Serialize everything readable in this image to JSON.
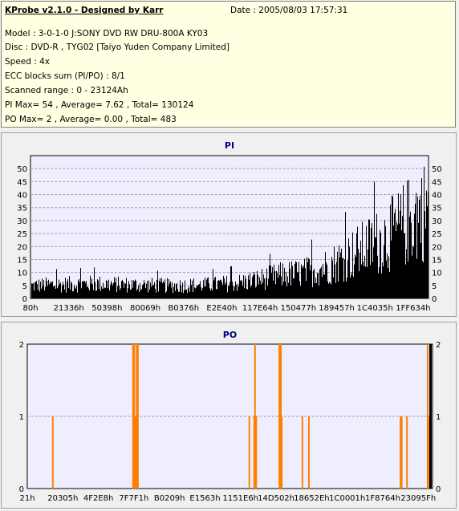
{
  "info": {
    "title": "KProbe v2.1.0 - Designed by Karr",
    "date": "Date : 2005/08/03 17:57:31",
    "lines": [
      "Model : 3-0-1-0 J:SONY     DVD RW DRU-800A  KY03",
      "Disc : DVD-R , TYG02 [Taiyo Yuden Company Limited]",
      "Speed : 4x",
      "ECC blocks sum (PI/PO) : 8/1",
      "Scanned range : 0 - 23124Ah",
      "PI Max= 54 , Average= 7.62 , Total= 130124",
      "PO Max= 2 , Average= 0.00 , Total= 483"
    ]
  },
  "colors": {
    "pi_bar": "#000000",
    "po_bar": "#ff8000",
    "plot_bg": "#eeeeff",
    "grid": "#a0a0a0",
    "title": "#000080",
    "info_bg": "#ffffe1"
  },
  "chart_data": [
    {
      "type": "bar",
      "title": "PI",
      "ylim": [
        0,
        55
      ],
      "yticks": [
        0,
        5,
        10,
        15,
        20,
        25,
        30,
        35,
        40,
        45,
        50
      ],
      "grid": "dashed horizontal",
      "xticks": [
        "80h",
        "21336h",
        "50398h",
        "80069h",
        "B0376h",
        "E2E40h",
        "117E64h",
        "150477h",
        "189457h",
        "1C4035h",
        "1FF634h"
      ],
      "trend_envelope": [
        {
          "x": 0.0,
          "y": 6.5
        },
        {
          "x": 0.05,
          "y": 7
        },
        {
          "x": 0.15,
          "y": 7.5
        },
        {
          "x": 0.25,
          "y": 7
        },
        {
          "x": 0.35,
          "y": 6.5
        },
        {
          "x": 0.45,
          "y": 7
        },
        {
          "x": 0.52,
          "y": 8
        },
        {
          "x": 0.58,
          "y": 10
        },
        {
          "x": 0.63,
          "y": 12
        },
        {
          "x": 0.68,
          "y": 13
        },
        {
          "x": 0.72,
          "y": 15
        },
        {
          "x": 0.76,
          "y": 18
        },
        {
          "x": 0.8,
          "y": 22
        },
        {
          "x": 0.84,
          "y": 26
        },
        {
          "x": 0.88,
          "y": 30
        },
        {
          "x": 0.92,
          "y": 35
        },
        {
          "x": 0.96,
          "y": 42
        },
        {
          "x": 1.0,
          "y": 47
        }
      ],
      "max": 54
    },
    {
      "type": "bar",
      "title": "PO",
      "ylim": [
        0,
        2
      ],
      "yticks": [
        0,
        1,
        2
      ],
      "grid": "dashed horizontal",
      "xticks": [
        "21h",
        "20305h",
        "4F2E8h",
        "7F7F1h",
        "B0209h",
        "E1563h",
        "1151E6h",
        "14D502h",
        "18652Eh",
        "1C0001h",
        "1F8764h",
        "23095Fh"
      ],
      "spikes": [
        {
          "x": 0.061,
          "v": 1
        },
        {
          "x": 0.259,
          "v": 2
        },
        {
          "x": 0.262,
          "v": 2
        },
        {
          "x": 0.265,
          "v": 1
        },
        {
          "x": 0.268,
          "v": 2
        },
        {
          "x": 0.271,
          "v": 2
        },
        {
          "x": 0.546,
          "v": 1
        },
        {
          "x": 0.558,
          "v": 1
        },
        {
          "x": 0.56,
          "v": 2
        },
        {
          "x": 0.563,
          "v": 1
        },
        {
          "x": 0.62,
          "v": 2
        },
        {
          "x": 0.622,
          "v": 2
        },
        {
          "x": 0.624,
          "v": 2
        },
        {
          "x": 0.626,
          "v": 1
        },
        {
          "x": 0.677,
          "v": 1
        },
        {
          "x": 0.693,
          "v": 1
        },
        {
          "x": 0.919,
          "v": 1
        },
        {
          "x": 0.922,
          "v": 1
        },
        {
          "x": 0.935,
          "v": 1
        },
        {
          "x": 0.986,
          "v": 2
        },
        {
          "x": 0.989,
          "v": 1
        },
        {
          "x": 0.992,
          "v": 2
        }
      ]
    }
  ]
}
